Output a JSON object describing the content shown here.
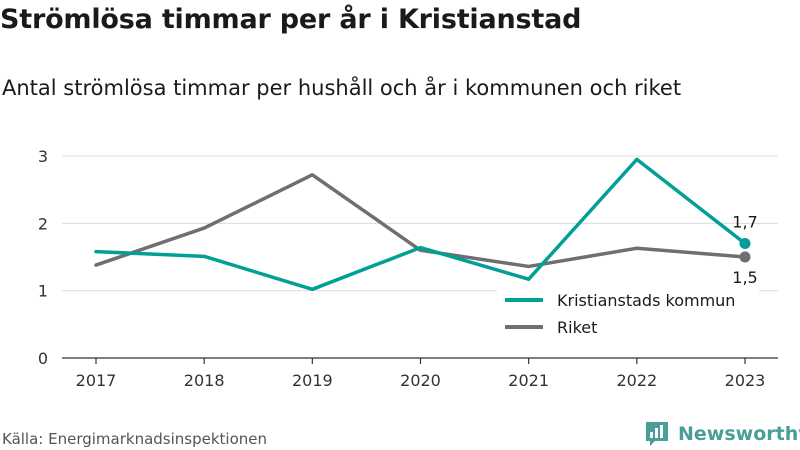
{
  "title": "Strömlösa timmar per år i Kristianstad",
  "subtitle": "Antal strömlösa timmar per hushåll och år i kommunen och riket",
  "source": "Källa: Energimarknadsinspektionen",
  "brand": {
    "name": "Newsworthy",
    "icon": "bar-chart-logo-icon",
    "color": "#4a9e98"
  },
  "chart_data": {
    "type": "line",
    "title": "Strömlösa timmar per år i Kristianstad",
    "subtitle": "Antal strömlösa timmar per hushåll och år i kommunen och riket",
    "x": [
      "2017",
      "2018",
      "2019",
      "2020",
      "2021",
      "2022",
      "2023"
    ],
    "ylim": [
      0,
      3
    ],
    "yticks": [
      0,
      1,
      2,
      3
    ],
    "grid": true,
    "legend_position": "bottom-right",
    "series": [
      {
        "name": "Kristianstads kommun",
        "color": "#00a096",
        "values": [
          1.58,
          1.51,
          1.02,
          1.64,
          1.17,
          2.95,
          1.7
        ],
        "end_label": "1,7"
      },
      {
        "name": "Riket",
        "color": "#6e6e73",
        "values": [
          1.38,
          1.93,
          2.72,
          1.6,
          1.36,
          1.63,
          1.5
        ],
        "end_label": "1,5"
      }
    ]
  }
}
